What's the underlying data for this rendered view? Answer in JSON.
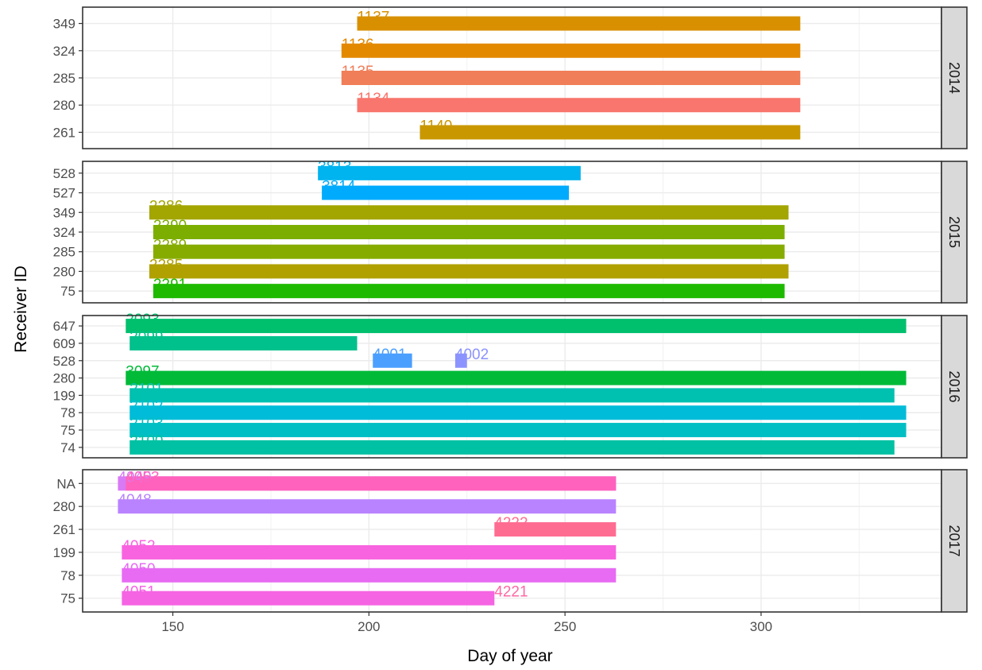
{
  "chart_data": {
    "type": "bar",
    "orientation": "horizontal-range",
    "xlabel": "Day of year",
    "ylabel": "Receiver ID",
    "xlim": [
      127,
      346
    ],
    "x_ticks": [
      150,
      200,
      250,
      300
    ],
    "grid": true,
    "legend": "none",
    "panels": [
      {
        "strip": "2014",
        "categories": [
          "261",
          "280",
          "285",
          "324",
          "349"
        ],
        "bars": [
          {
            "receiver": "349",
            "label": "1137",
            "start": 197,
            "end": 310,
            "color": "#D89000"
          },
          {
            "receiver": "324",
            "label": "1136",
            "start": 193,
            "end": 310,
            "color": "#E38900"
          },
          {
            "receiver": "285",
            "label": "1135",
            "start": 193,
            "end": 310,
            "color": "#F07E58"
          },
          {
            "receiver": "280",
            "label": "1134",
            "start": 197,
            "end": 310,
            "color": "#F8766D"
          },
          {
            "receiver": "261",
            "label": "1140",
            "start": 213,
            "end": 310,
            "color": "#C99800"
          }
        ]
      },
      {
        "strip": "2015",
        "categories": [
          "75",
          "280",
          "285",
          "324",
          "349",
          "527",
          "528"
        ],
        "bars": [
          {
            "receiver": "528",
            "label": "3813",
            "start": 187,
            "end": 254,
            "color": "#00B4EF"
          },
          {
            "receiver": "527",
            "label": "3814",
            "start": 188,
            "end": 251,
            "color": "#00ABFD"
          },
          {
            "receiver": "349",
            "label": "2286",
            "start": 144,
            "end": 307,
            "color": "#A3A500"
          },
          {
            "receiver": "324",
            "label": "2290",
            "start": 145,
            "end": 306,
            "color": "#7CAE00"
          },
          {
            "receiver": "285",
            "label": "2289",
            "start": 145,
            "end": 306,
            "color": "#86AC00"
          },
          {
            "receiver": "280",
            "label": "2285",
            "start": 144,
            "end": 307,
            "color": "#B0A100"
          },
          {
            "receiver": "75",
            "label": "2291",
            "start": 145,
            "end": 306,
            "color": "#1DBA00"
          }
        ]
      },
      {
        "strip": "2016",
        "categories": [
          "74",
          "75",
          "78",
          "199",
          "280",
          "528",
          "609",
          "647"
        ],
        "bars": [
          {
            "receiver": "647",
            "label": "2093",
            "start": 138,
            "end": 337,
            "color": "#00BF6D"
          },
          {
            "receiver": "609",
            "label": "2099",
            "start": 139,
            "end": 197,
            "color": "#00C08B"
          },
          {
            "receiver": "528",
            "label": "4001",
            "start": 201,
            "end": 211,
            "color": "#4B9FFF"
          },
          {
            "receiver": "528",
            "label": "4002",
            "start": 222,
            "end": 225,
            "color": "#8B93FF"
          },
          {
            "receiver": "280",
            "label": "3097",
            "start": 138,
            "end": 337,
            "color": "#00BA38"
          },
          {
            "receiver": "199",
            "label": "2101",
            "start": 139,
            "end": 334,
            "color": "#00C0AF"
          },
          {
            "receiver": "78",
            "label": "2102",
            "start": 139,
            "end": 337,
            "color": "#00BCD8"
          },
          {
            "receiver": "75",
            "label": "2103",
            "start": 139,
            "end": 337,
            "color": "#00BFC4"
          },
          {
            "receiver": "74",
            "label": "2100",
            "start": 139,
            "end": 334,
            "color": "#00C1A3"
          }
        ]
      },
      {
        "strip": "2017",
        "categories": [
          "75",
          "78",
          "199",
          "261",
          "280",
          "NA"
        ],
        "bars": [
          {
            "receiver": "NA",
            "label": "4049",
            "start": 136,
            "end": 263,
            "color": "#D87AF5"
          },
          {
            "receiver": "NA",
            "label": "4053",
            "start": 138,
            "end": 263,
            "color": "#FF62BC"
          },
          {
            "receiver": "280",
            "label": "4048",
            "start": 136,
            "end": 263,
            "color": "#B983FF"
          },
          {
            "receiver": "261",
            "label": "4222",
            "start": 232,
            "end": 263,
            "color": "#FF6C91"
          },
          {
            "receiver": "199",
            "label": "4052",
            "start": 137,
            "end": 263,
            "color": "#F863DF"
          },
          {
            "receiver": "78",
            "label": "4050",
            "start": 137,
            "end": 263,
            "color": "#E76BF3"
          },
          {
            "receiver": "75",
            "label": "4051",
            "start": 137,
            "end": 232,
            "color": "#F564E3"
          },
          {
            "receiver": "75",
            "label": "4221",
            "start": 232,
            "end": 232,
            "color": "#FF67A4"
          }
        ]
      }
    ]
  }
}
